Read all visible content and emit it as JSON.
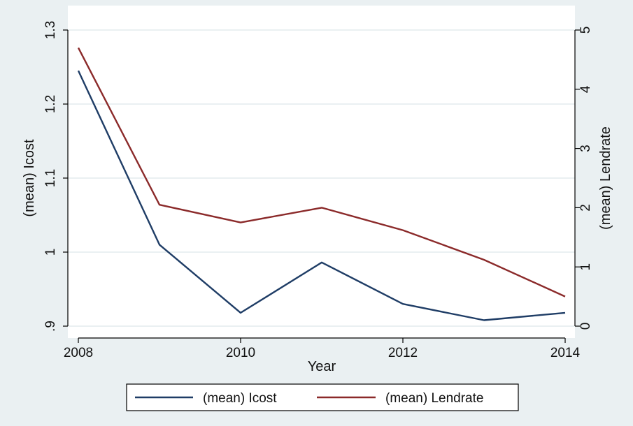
{
  "chart_data": {
    "type": "line",
    "x": [
      2008,
      2009,
      2010,
      2011,
      2012,
      2013,
      2014
    ],
    "x_ticks": [
      "2008",
      "2010",
      "2012",
      "2014"
    ],
    "xlabel": "Year",
    "ylabel_left": "(mean) Icost",
    "ylabel_right": "(mean) Lendrate",
    "ylim_left": [
      0.9,
      1.3
    ],
    "ylim_right": [
      0,
      5
    ],
    "y_ticks_left": [
      {
        "value": 0.9,
        "label": ".9"
      },
      {
        "value": 1.0,
        "label": "1"
      },
      {
        "value": 1.1,
        "label": "1.1"
      },
      {
        "value": 1.2,
        "label": "1.2"
      },
      {
        "value": 1.3,
        "label": "1.3"
      }
    ],
    "y_ticks_right": [
      {
        "value": 0,
        "label": "0"
      },
      {
        "value": 1,
        "label": "1"
      },
      {
        "value": 2,
        "label": "2"
      },
      {
        "value": 3,
        "label": "3"
      },
      {
        "value": 4,
        "label": "4"
      },
      {
        "value": 5,
        "label": "5"
      }
    ],
    "grid": true,
    "legend_position": "bottom",
    "series": [
      {
        "name": "(mean) Icost",
        "axis": "left",
        "color": "#1f3d66",
        "values": [
          1.245,
          1.01,
          0.918,
          0.986,
          0.93,
          0.908,
          0.918
        ]
      },
      {
        "name": "(mean) Lendrate",
        "axis": "right",
        "color": "#8b2a2a",
        "values": [
          4.7,
          2.05,
          1.75,
          2.0,
          1.62,
          1.12,
          0.5
        ]
      }
    ],
    "colors": {
      "background": "#eaf0f2",
      "plot_area": "#ffffff",
      "grid": "#dde6ea",
      "axis": "#000000"
    }
  }
}
